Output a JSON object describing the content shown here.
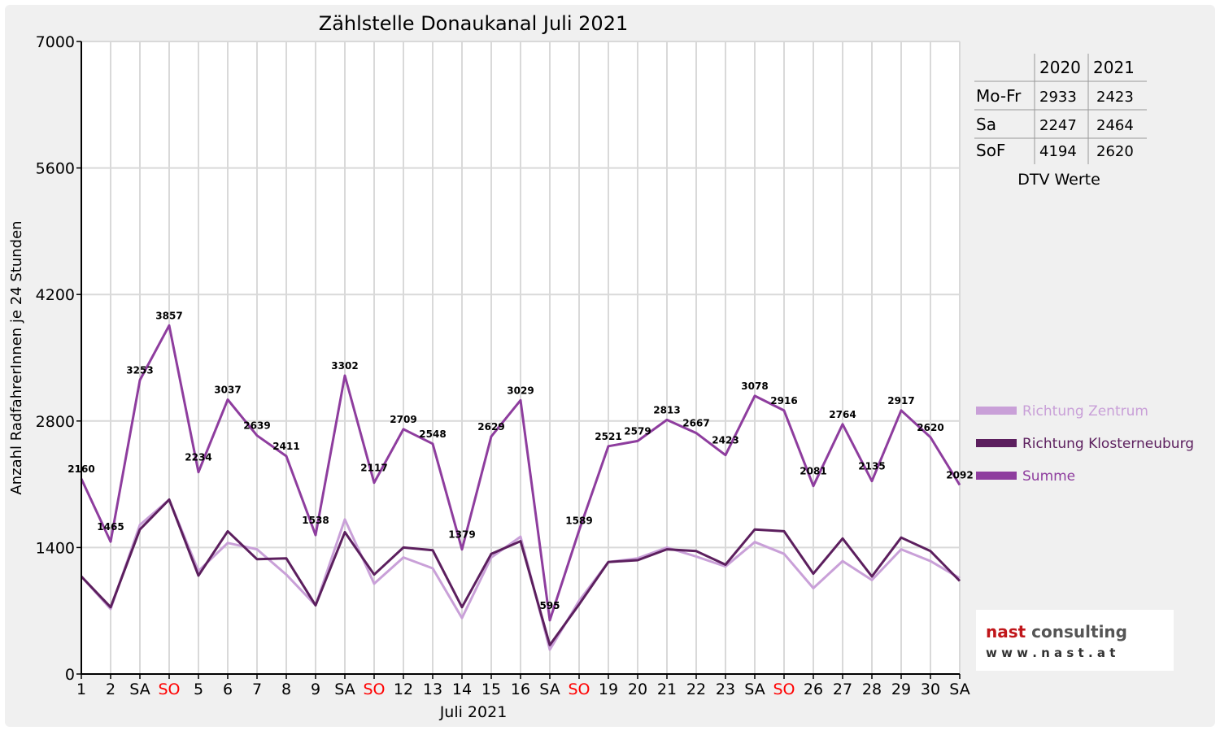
{
  "chart_data": {
    "type": "line",
    "title": "Zählstelle Donaukanal Juli 2021",
    "xlabel": "Juli 2021",
    "ylabel": "Anzahl RadfahrerInnen je 24 Stunden",
    "ylim": [
      0,
      7000
    ],
    "yticks": [
      0,
      1400,
      2800,
      4200,
      5600,
      7000
    ],
    "grid": true,
    "legend_position": "right",
    "x_labels": [
      "1",
      "2",
      "SA",
      "SO",
      "5",
      "6",
      "7",
      "8",
      "9",
      "SA",
      "SO",
      "12",
      "13",
      "14",
      "15",
      "16",
      "SA",
      "SO",
      "19",
      "20",
      "21",
      "22",
      "23",
      "SA",
      "SO",
      "26",
      "27",
      "28",
      "29",
      "30",
      "SA"
    ],
    "weekend_color": "#ff0000",
    "series": [
      {
        "name": "Richtung Zentrum",
        "color": "#c9a0d8",
        "values": [
          1080,
          720,
          1650,
          1930,
          1140,
          1450,
          1380,
          1100,
          760,
          1710,
          1000,
          1290,
          1170,
          620,
          1290,
          1520,
          270,
          810,
          1240,
          1280,
          1400,
          1300,
          1190,
          1460,
          1330,
          950,
          1250,
          1040,
          1380,
          1250,
          1060
        ]
      },
      {
        "name": "Richtung Klosterneuburg",
        "color": "#5c1f5e",
        "values": [
          1080,
          740,
          1600,
          1930,
          1090,
          1580,
          1270,
          1280,
          760,
          1570,
          1100,
          1400,
          1370,
          740,
          1330,
          1470,
          320,
          770,
          1240,
          1260,
          1380,
          1360,
          1210,
          1600,
          1580,
          1110,
          1500,
          1080,
          1510,
          1360,
          1030
        ]
      },
      {
        "name": "Summe",
        "color": "#8e3d9e",
        "values": [
          2160,
          1465,
          3253,
          3857,
          2234,
          3037,
          2639,
          2411,
          1538,
          3302,
          2117,
          2709,
          2548,
          1379,
          2629,
          3029,
          595,
          1589,
          2521,
          2579,
          2813,
          2667,
          2423,
          3078,
          2916,
          2081,
          2764,
          2135,
          2917,
          2620,
          2092
        ]
      }
    ],
    "data_labels": [
      "2160",
      "1465",
      "3253",
      "3857",
      "2234",
      "3037",
      "2639",
      "2411",
      "1538",
      "3302",
      "2117",
      "2709",
      "2548",
      "1379",
      "2629",
      "3029",
      "595",
      "1589",
      "2521",
      "2579",
      "2813",
      "2667",
      "2423",
      "3078",
      "2916",
      "2081",
      "2764",
      "2135",
      "2917",
      "2620",
      "2092"
    ]
  },
  "dtv_table": {
    "headers": [
      "",
      "2020",
      "2021"
    ],
    "rows": [
      [
        "Mo-Fr",
        "2933",
        "2423"
      ],
      [
        "Sa",
        "2247",
        "2464"
      ],
      [
        "SoF",
        "4194",
        "2620"
      ]
    ],
    "caption": "DTV Werte"
  },
  "legend": {
    "items": [
      {
        "label": "Richtung Zentrum",
        "color": "#c9a0d8"
      },
      {
        "label": "Richtung Klosterneuburg",
        "color": "#5c1f5e"
      },
      {
        "label": "Summe",
        "color": "#8e3d9e"
      }
    ]
  },
  "logo": {
    "brand_text": "nast consulting",
    "url_text": "w w w . n a s t . a t"
  }
}
